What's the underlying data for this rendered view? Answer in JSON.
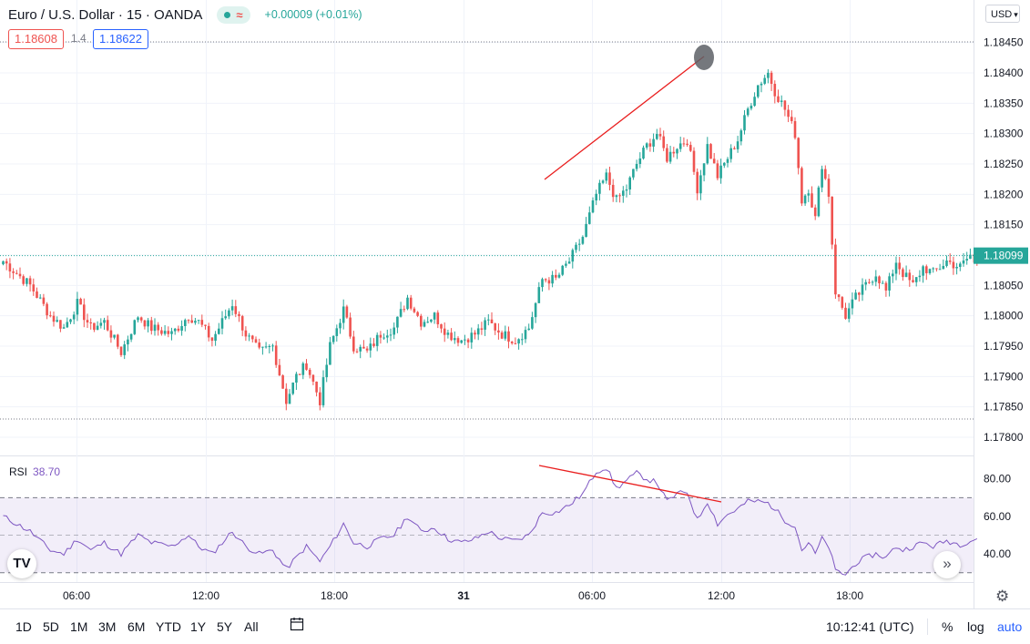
{
  "header": {
    "symbol_title": "Euro / U.S. Dollar · 15 · OANDA",
    "change_text": "+0.00009 (+0.01%)",
    "sell_price": "1.18608",
    "spread": "1.4",
    "buy_price": "1.18622",
    "currency": "USD"
  },
  "colors": {
    "up": "#26a69a",
    "down": "#ef5350",
    "rsi": "#7e57c2",
    "annotation": "#e91e1e",
    "accent": "#2962ff"
  },
  "icons": [
    "tradingview-logo-icon",
    "scroll-to-realtime-icon",
    "settings-gear-icon",
    "calendar-icon",
    "chevron-down-icon"
  ],
  "chart_data": [
    {
      "type": "candlestick",
      "title": "Euro / U.S. Dollar · 15 · OANDA",
      "current_price": "1.18099",
      "y_ticks": [
        "1.18450",
        "1.18400",
        "1.18350",
        "1.18300",
        "1.18250",
        "1.18200",
        "1.18150",
        "1.18100",
        "1.18050",
        "1.18000",
        "1.17950",
        "1.17900",
        "1.17850",
        "1.17800"
      ],
      "x_ticks": [
        "06:00",
        "12:00",
        "18:00",
        "31",
        "06:00",
        "12:00",
        "18:00"
      ],
      "ylim": [
        1.1777,
        1.1852
      ],
      "high_line": 1.18451,
      "low_line": 1.1783,
      "close_keypoints": [
        [
          0,
          1.1809
        ],
        [
          8,
          1.1805
        ],
        [
          14,
          1.18
        ],
        [
          18,
          1.1798
        ],
        [
          22,
          1.1802
        ],
        [
          26,
          1.1798
        ],
        [
          30,
          1.1799
        ],
        [
          35,
          1.1794
        ],
        [
          40,
          1.18
        ],
        [
          44,
          1.1798
        ],
        [
          50,
          1.1797
        ],
        [
          55,
          1.18
        ],
        [
          58,
          1.1799
        ],
        [
          62,
          1.1796
        ],
        [
          68,
          1.1802
        ],
        [
          72,
          1.1797
        ],
        [
          76,
          1.1794
        ],
        [
          80,
          1.1795
        ],
        [
          84,
          1.1786
        ],
        [
          87,
          1.179
        ],
        [
          90,
          1.1792
        ],
        [
          94,
          1.1786
        ],
        [
          97,
          1.1795
        ],
        [
          101,
          1.1801
        ],
        [
          104,
          1.1795
        ],
        [
          108,
          1.1794
        ],
        [
          112,
          1.1797
        ],
        [
          116,
          1.1798
        ],
        [
          120,
          1.1803
        ],
        [
          124,
          1.1799
        ],
        [
          128,
          1.18
        ],
        [
          132,
          1.1797
        ],
        [
          136,
          1.1796
        ],
        [
          140,
          1.1797
        ],
        [
          144,
          1.1799
        ],
        [
          148,
          1.1797
        ],
        [
          152,
          1.1796
        ],
        [
          156,
          1.1798
        ],
        [
          160,
          1.1806
        ],
        [
          164,
          1.1806
        ],
        [
          168,
          1.1809
        ],
        [
          172,
          1.1813
        ],
        [
          176,
          1.182
        ],
        [
          179,
          1.1823
        ],
        [
          182,
          1.1819
        ],
        [
          185,
          1.1821
        ],
        [
          188,
          1.1825
        ],
        [
          191,
          1.1828
        ],
        [
          194,
          1.183
        ],
        [
          197,
          1.1826
        ],
        [
          200,
          1.1828
        ],
        [
          203,
          1.1829
        ],
        [
          206,
          1.1821
        ],
        [
          209,
          1.1828
        ],
        [
          212,
          1.1823
        ],
        [
          215,
          1.1826
        ],
        [
          218,
          1.1829
        ],
        [
          221,
          1.1834
        ],
        [
          224,
          1.1838
        ],
        [
          227,
          1.184
        ],
        [
          229,
          1.1837
        ],
        [
          232,
          1.1834
        ],
        [
          235,
          1.183
        ],
        [
          237,
          1.1819
        ],
        [
          239,
          1.1821
        ],
        [
          241,
          1.1816
        ],
        [
          243,
          1.1825
        ],
        [
          245,
          1.182
        ],
        [
          247,
          1.1804
        ],
        [
          250,
          1.18
        ],
        [
          253,
          1.1803
        ],
        [
          256,
          1.1805
        ],
        [
          259,
          1.1807
        ],
        [
          262,
          1.1804
        ],
        [
          265,
          1.1809
        ],
        [
          267,
          1.1807
        ],
        [
          270,
          1.1805
        ],
        [
          273,
          1.1808
        ],
        [
          276,
          1.1807
        ],
        [
          280,
          1.1809
        ],
        [
          284,
          1.1808
        ],
        [
          287,
          1.181
        ],
        [
          290,
          1.1809
        ]
      ]
    },
    {
      "type": "line",
      "title": "RSI",
      "current_value": "38.70",
      "y_ticks": [
        "80.00",
        "60.00",
        "40.00"
      ],
      "ylim": [
        25,
        92
      ],
      "bands": [
        70,
        50,
        30
      ],
      "keypoints": [
        [
          0,
          60
        ],
        [
          8,
          52
        ],
        [
          14,
          42
        ],
        [
          18,
          40
        ],
        [
          22,
          48
        ],
        [
          26,
          42
        ],
        [
          30,
          46
        ],
        [
          35,
          40
        ],
        [
          40,
          50
        ],
        [
          44,
          46
        ],
        [
          50,
          44
        ],
        [
          55,
          50
        ],
        [
          58,
          44
        ],
        [
          62,
          40
        ],
        [
          68,
          52
        ],
        [
          72,
          44
        ],
        [
          76,
          40
        ],
        [
          80,
          42
        ],
        [
          84,
          32
        ],
        [
          87,
          38
        ],
        [
          90,
          44
        ],
        [
          94,
          36
        ],
        [
          97,
          44
        ],
        [
          101,
          56
        ],
        [
          104,
          46
        ],
        [
          108,
          44
        ],
        [
          112,
          48
        ],
        [
          116,
          50
        ],
        [
          120,
          60
        ],
        [
          124,
          52
        ],
        [
          128,
          54
        ],
        [
          132,
          48
        ],
        [
          136,
          46
        ],
        [
          140,
          48
        ],
        [
          144,
          52
        ],
        [
          148,
          48
        ],
        [
          152,
          47
        ],
        [
          156,
          50
        ],
        [
          160,
          62
        ],
        [
          164,
          62
        ],
        [
          168,
          66
        ],
        [
          172,
          72
        ],
        [
          176,
          84
        ],
        [
          179,
          86
        ],
        [
          182,
          75
        ],
        [
          185,
          79
        ],
        [
          188,
          83
        ],
        [
          191,
          80
        ],
        [
          194,
          78
        ],
        [
          197,
          68
        ],
        [
          200,
          72
        ],
        [
          203,
          73
        ],
        [
          206,
          58
        ],
        [
          209,
          68
        ],
        [
          212,
          56
        ],
        [
          215,
          61
        ],
        [
          218,
          64
        ],
        [
          221,
          68
        ],
        [
          224,
          68
        ],
        [
          227,
          67
        ],
        [
          229,
          64
        ],
        [
          232,
          58
        ],
        [
          235,
          55
        ],
        [
          237,
          42
        ],
        [
          239,
          46
        ],
        [
          241,
          40
        ],
        [
          243,
          48
        ],
        [
          245,
          44
        ],
        [
          247,
          31
        ],
        [
          250,
          29
        ],
        [
          253,
          35
        ],
        [
          256,
          38
        ],
        [
          259,
          40
        ],
        [
          262,
          38
        ],
        [
          265,
          44
        ],
        [
          267,
          42
        ],
        [
          270,
          44
        ],
        [
          273,
          46
        ],
        [
          276,
          44
        ],
        [
          280,
          47
        ],
        [
          284,
          45
        ],
        [
          287,
          47
        ],
        [
          290,
          49
        ]
      ]
    }
  ],
  "rsi": {
    "label": "RSI",
    "value": "38.70"
  },
  "logo_text": "TV",
  "timeframes": [
    "1D",
    "5D",
    "1M",
    "3M",
    "6M",
    "YTD",
    "1Y",
    "5Y",
    "All"
  ],
  "clock": "10:12:41 (UTC)",
  "scale_buttons": {
    "percent": "%",
    "log": "log",
    "auto": "auto"
  }
}
